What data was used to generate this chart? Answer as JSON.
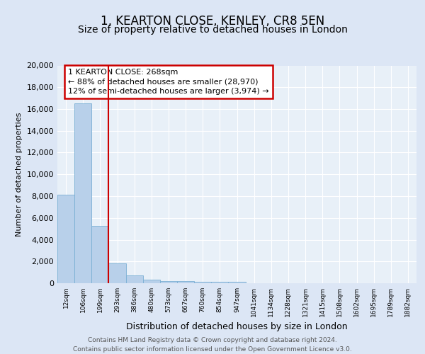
{
  "title1": "1, KEARTON CLOSE, KENLEY, CR8 5EN",
  "title2": "Size of property relative to detached houses in London",
  "xlabel": "Distribution of detached houses by size in London",
  "ylabel": "Number of detached properties",
  "categories": [
    "12sqm",
    "106sqm",
    "199sqm",
    "293sqm",
    "386sqm",
    "480sqm",
    "573sqm",
    "667sqm",
    "760sqm",
    "854sqm",
    "947sqm",
    "1041sqm",
    "1134sqm",
    "1228sqm",
    "1321sqm",
    "1415sqm",
    "1508sqm",
    "1602sqm",
    "1695sqm",
    "1789sqm",
    "1882sqm"
  ],
  "values": [
    8100,
    16500,
    5300,
    1850,
    700,
    300,
    220,
    190,
    160,
    120,
    100,
    0,
    0,
    0,
    0,
    0,
    0,
    0,
    0,
    0,
    0
  ],
  "bar_color": "#b8d0ea",
  "bar_edge_color": "#7aafd4",
  "vline_x": 2.5,
  "vline_color": "#cc0000",
  "annotation_text": "1 KEARTON CLOSE: 268sqm\n← 88% of detached houses are smaller (28,970)\n12% of semi-detached houses are larger (3,974) →",
  "annotation_box_color": "#ffffff",
  "annotation_box_edge": "#cc0000",
  "ylim": [
    0,
    20000
  ],
  "yticks": [
    0,
    2000,
    4000,
    6000,
    8000,
    10000,
    12000,
    14000,
    16000,
    18000,
    20000
  ],
  "bg_color": "#dce6f5",
  "plot_bg_color": "#e8f0f8",
  "footer_text": "Contains HM Land Registry data © Crown copyright and database right 2024.\nContains public sector information licensed under the Open Government Licence v3.0.",
  "title_fontsize": 12,
  "subtitle_fontsize": 10,
  "annot_fontsize": 8
}
